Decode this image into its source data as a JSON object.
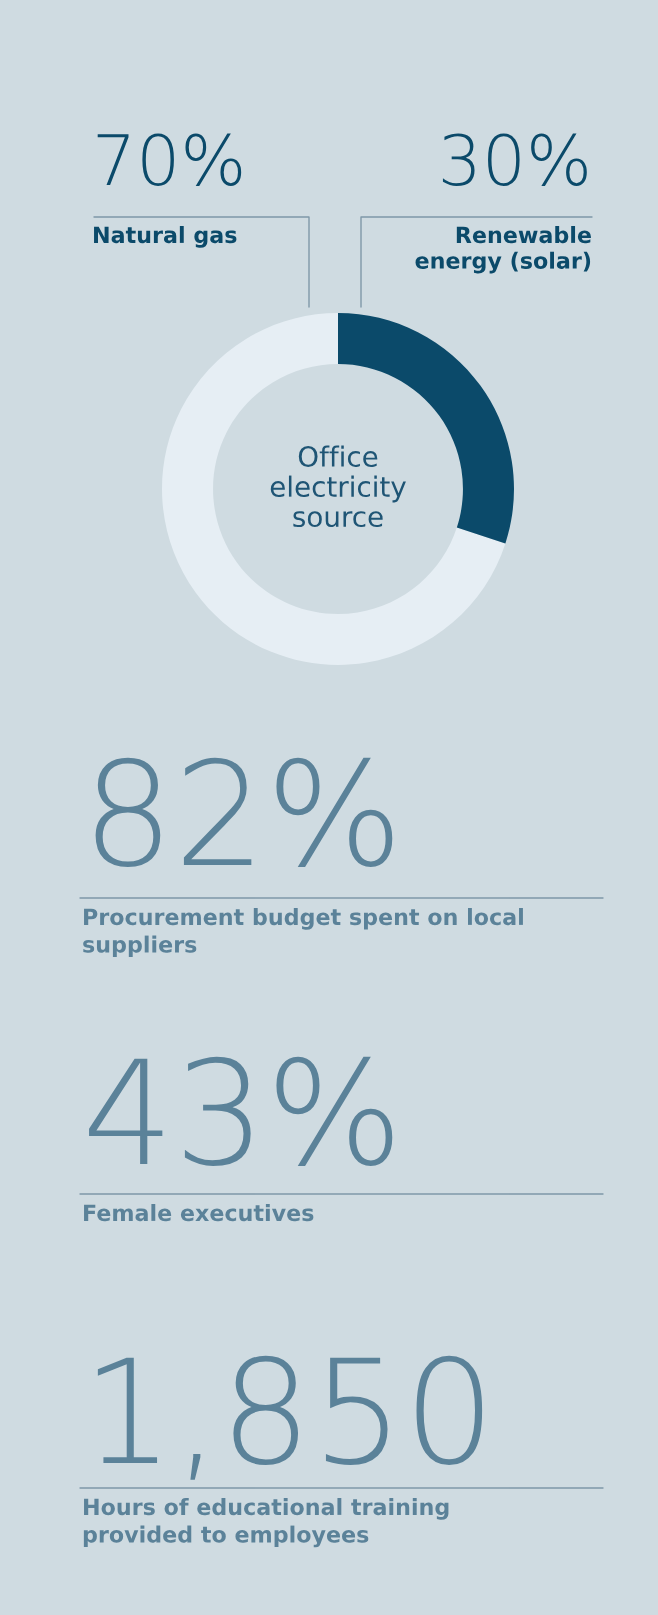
{
  "chart_data": [
    {
      "type": "donut",
      "title": "Office\nelectricity\nsource",
      "categories": [
        "Natural gas",
        "Renewable\nenergy (solar)"
      ],
      "values": [
        70,
        30
      ],
      "colors": [
        "#e6eef4",
        "#0b4a6a"
      ],
      "value_labels": [
        "70%",
        "30%"
      ]
    },
    {
      "type": "other",
      "annotations": [
        "82%",
        "Procurement budget spent on local\nsuppliers",
        "43%",
        "Female executives",
        "1,850",
        "Hours of educational training\nprovided to employees"
      ]
    }
  ]
}
